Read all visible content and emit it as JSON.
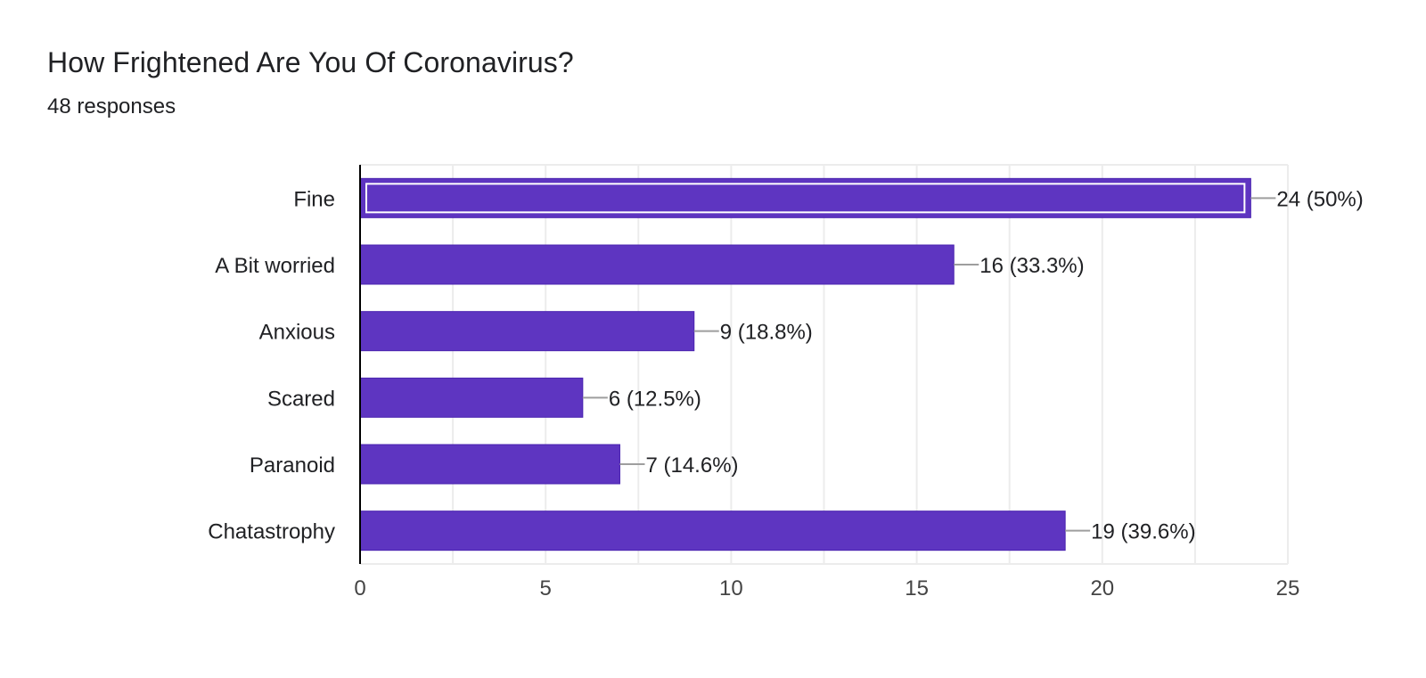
{
  "title": "How Frightened Are You Of Coronavirus?",
  "subtitle": "48 responses",
  "colors": {
    "bar": "#5e35c1",
    "bar_outline": "#4a23b0",
    "grid": "#ececec",
    "axis": "#000000",
    "leader": "#9e9e9e",
    "text": "#202124",
    "tick_text": "#444444"
  },
  "chart_data": {
    "type": "bar",
    "orientation": "horizontal",
    "categories": [
      "Fine",
      "A Bit worried",
      "Anxious",
      "Scared",
      "Paranoid",
      "Chatastrophy"
    ],
    "values": [
      24,
      16,
      9,
      6,
      7,
      19
    ],
    "data_labels": [
      "24 (50%)",
      "16 (33.3%)",
      "9 (18.8%)",
      "6 (12.5%)",
      "7 (14.6%)",
      "19 (39.6%)"
    ],
    "highlighted_category": "Fine",
    "xlim": [
      0,
      25
    ],
    "xticks": [
      0,
      5,
      10,
      15,
      20,
      25
    ],
    "grid": true,
    "title": "How Frightened Are You Of Coronavirus?",
    "xlabel": "",
    "ylabel": ""
  }
}
